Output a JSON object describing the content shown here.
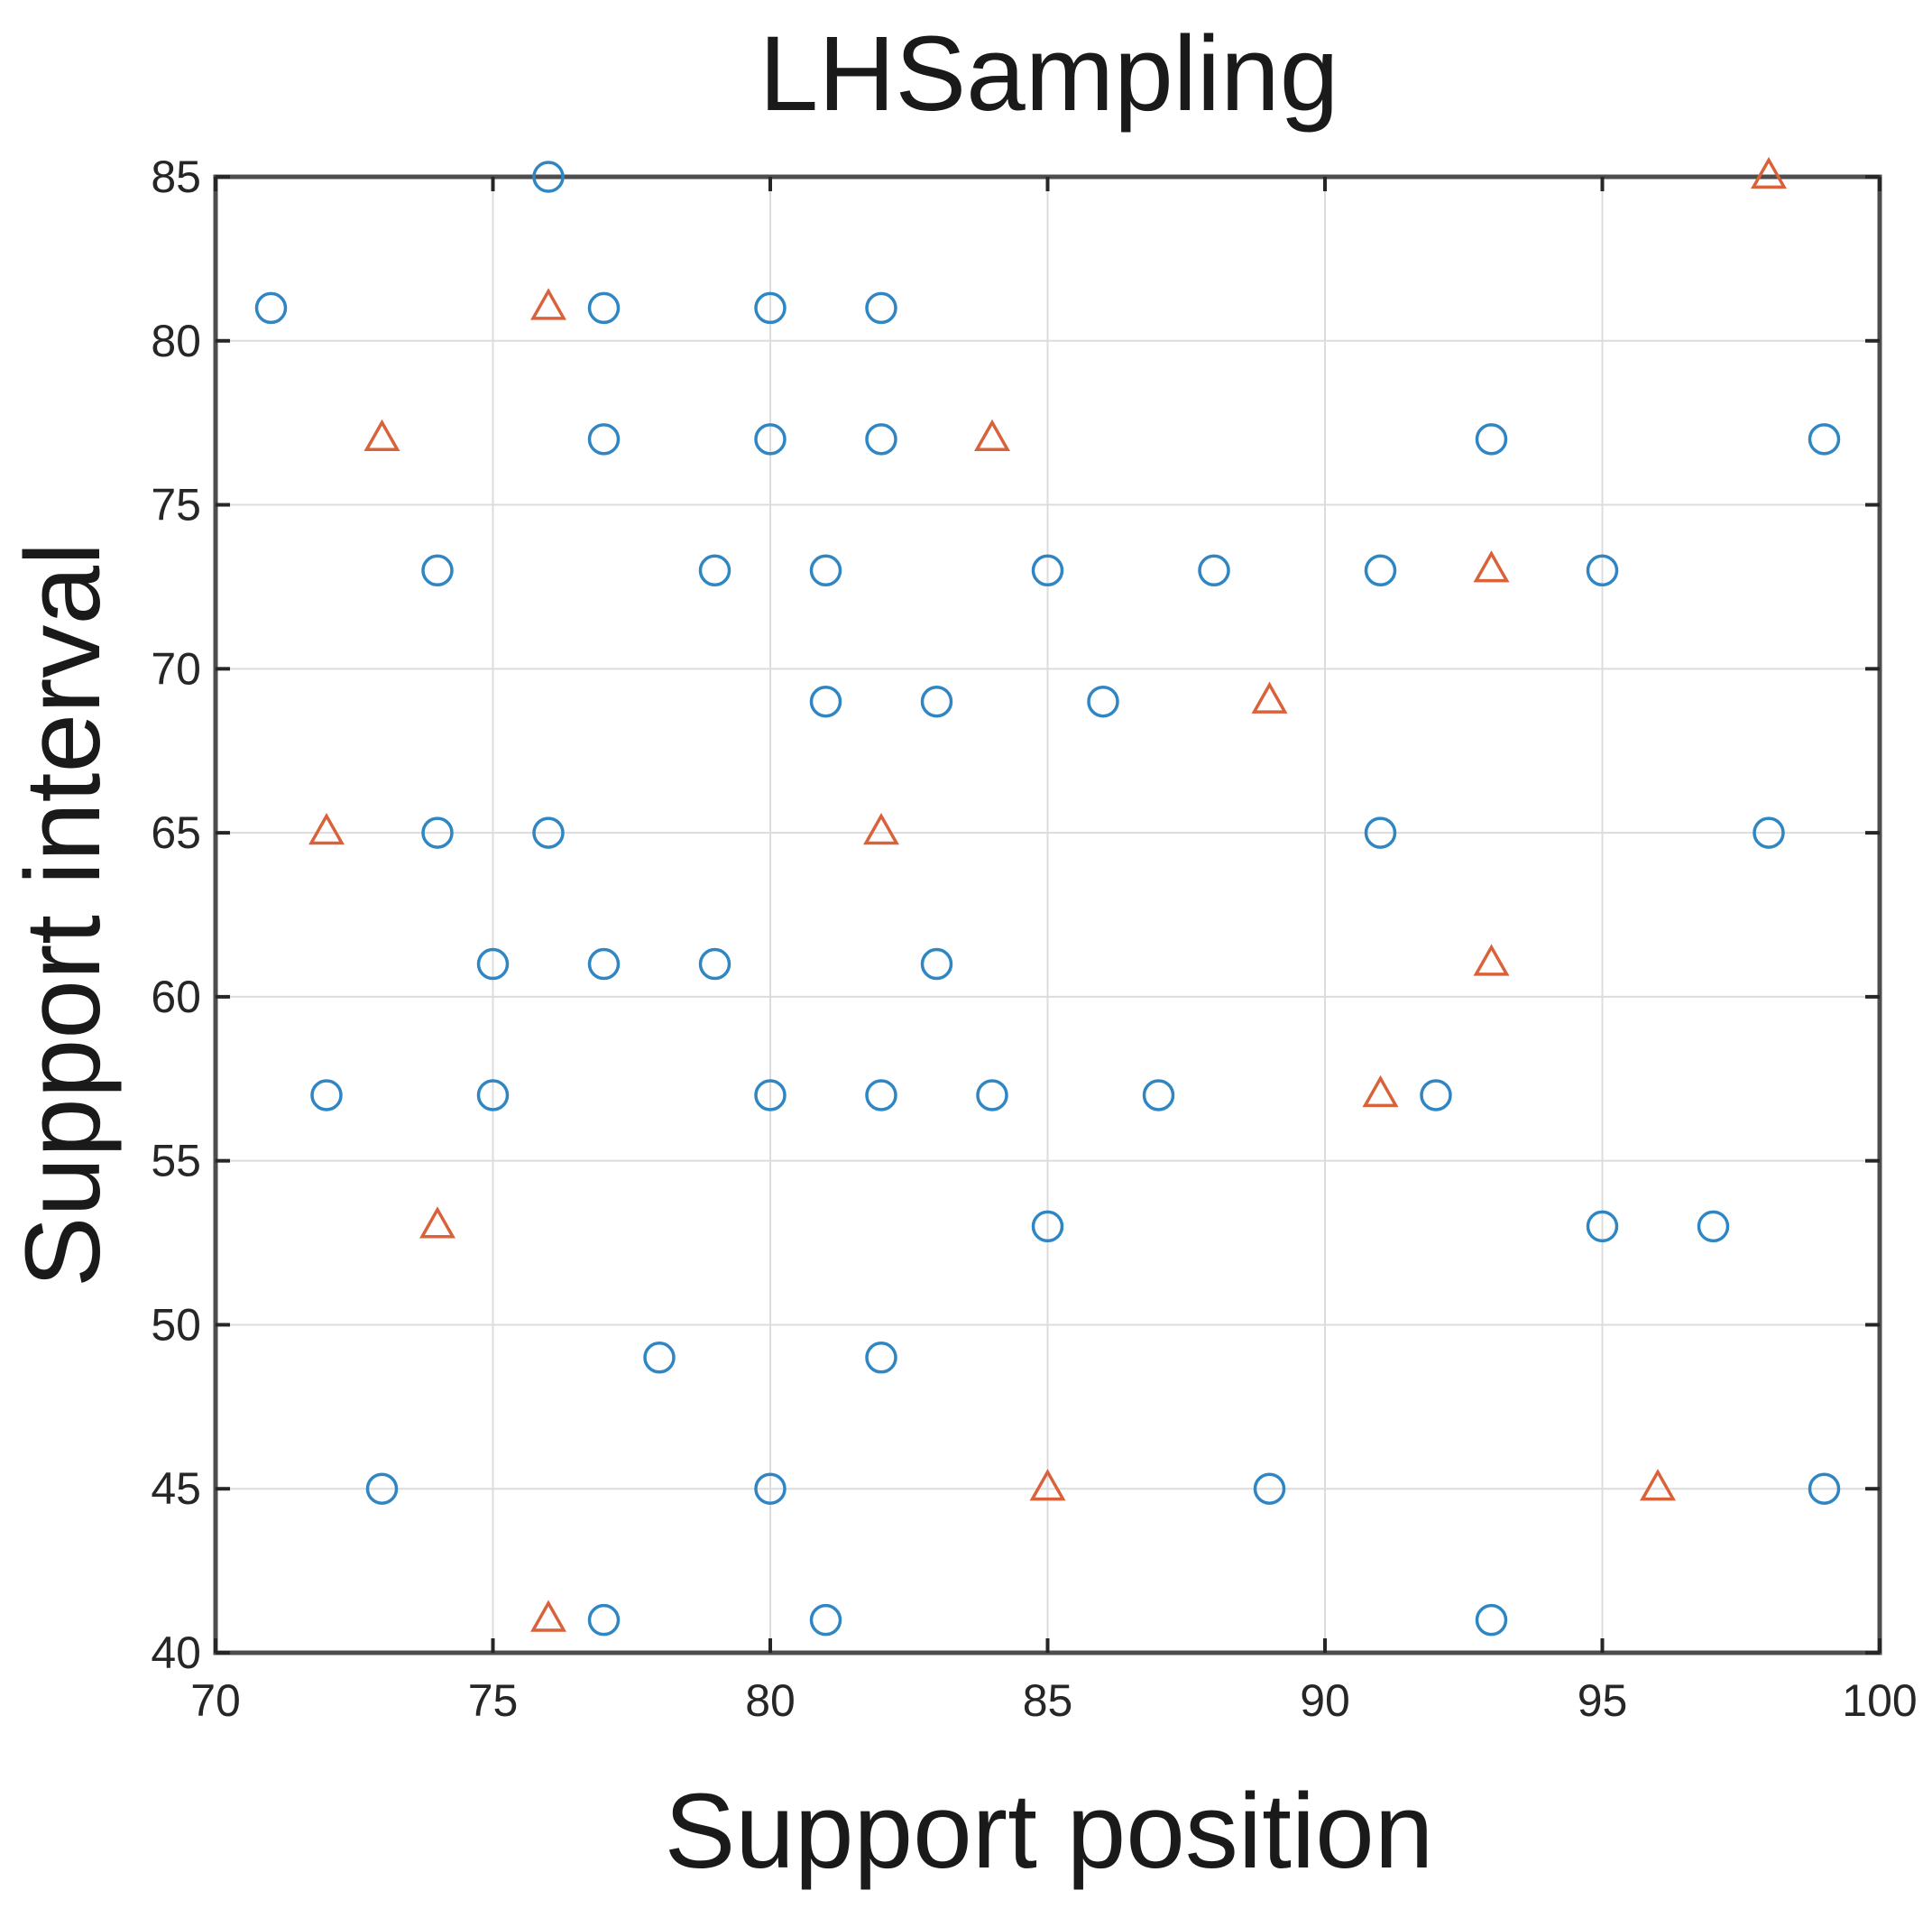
{
  "chart_data": {
    "type": "scatter",
    "title": "LHSampling",
    "xlabel": "Support position",
    "ylabel": "Support interval",
    "xlim": [
      70,
      100
    ],
    "ylim": [
      40,
      85
    ],
    "xticks": [
      70,
      75,
      80,
      85,
      90,
      95,
      100
    ],
    "yticks": [
      40,
      45,
      50,
      55,
      60,
      65,
      70,
      75,
      80,
      85
    ],
    "grid": true,
    "series": [
      {
        "name": "circles",
        "marker": "circle",
        "color": "#2f86c3",
        "points": [
          [
            76,
            85
          ],
          [
            71,
            81
          ],
          [
            77,
            81
          ],
          [
            80,
            81
          ],
          [
            82,
            81
          ],
          [
            77,
            77
          ],
          [
            80,
            77
          ],
          [
            82,
            77
          ],
          [
            93,
            77
          ],
          [
            99,
            77
          ],
          [
            74,
            73
          ],
          [
            79,
            73
          ],
          [
            81,
            73
          ],
          [
            85,
            73
          ],
          [
            88,
            73
          ],
          [
            91,
            73
          ],
          [
            95,
            73
          ],
          [
            81,
            69
          ],
          [
            83,
            69
          ],
          [
            86,
            69
          ],
          [
            74,
            65
          ],
          [
            76,
            65
          ],
          [
            91,
            65
          ],
          [
            98,
            65
          ],
          [
            75,
            61
          ],
          [
            77,
            61
          ],
          [
            79,
            61
          ],
          [
            83,
            61
          ],
          [
            72,
            57
          ],
          [
            75,
            57
          ],
          [
            80,
            57
          ],
          [
            82,
            57
          ],
          [
            84,
            57
          ],
          [
            87,
            57
          ],
          [
            92,
            57
          ],
          [
            85,
            53
          ],
          [
            95,
            53
          ],
          [
            97,
            53
          ],
          [
            78,
            49
          ],
          [
            82,
            49
          ],
          [
            73,
            45
          ],
          [
            80,
            45
          ],
          [
            89,
            45
          ],
          [
            99,
            45
          ],
          [
            77,
            41
          ],
          [
            81,
            41
          ],
          [
            93,
            41
          ]
        ]
      },
      {
        "name": "triangles",
        "marker": "triangle",
        "color": "#d9623b",
        "points": [
          [
            98,
            85
          ],
          [
            76,
            81
          ],
          [
            73,
            77
          ],
          [
            84,
            77
          ],
          [
            93,
            73
          ],
          [
            89,
            69
          ],
          [
            72,
            65
          ],
          [
            82,
            65
          ],
          [
            93,
            61
          ],
          [
            91,
            57
          ],
          [
            74,
            53
          ],
          [
            85,
            45
          ],
          [
            96,
            45
          ],
          [
            76,
            41
          ]
        ]
      }
    ]
  }
}
